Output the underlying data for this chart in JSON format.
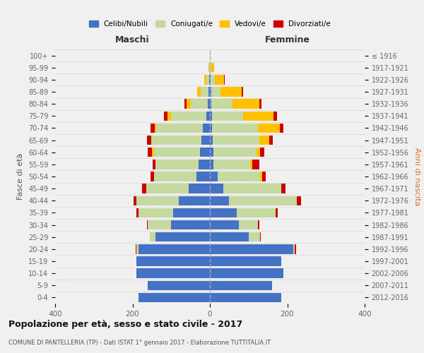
{
  "age_groups": [
    "0-4",
    "5-9",
    "10-14",
    "15-19",
    "20-24",
    "25-29",
    "30-34",
    "35-39",
    "40-44",
    "45-49",
    "50-54",
    "55-59",
    "60-64",
    "65-69",
    "70-74",
    "75-79",
    "80-84",
    "85-89",
    "90-94",
    "95-99",
    "100+"
  ],
  "birth_years": [
    "2012-2016",
    "2007-2011",
    "2002-2006",
    "1997-2001",
    "1992-1996",
    "1987-1991",
    "1982-1986",
    "1977-1981",
    "1972-1976",
    "1967-1971",
    "1962-1966",
    "1957-1961",
    "1952-1956",
    "1947-1951",
    "1942-1946",
    "1937-1941",
    "1932-1936",
    "1927-1931",
    "1922-1926",
    "1917-1921",
    "≤ 1916"
  ],
  "colors": {
    "celibe": "#4472c4",
    "coniugato": "#c5d9a0",
    "vedovo": "#ffc000",
    "divorziato": "#cc0000"
  },
  "maschi": {
    "celibe": [
      185,
      160,
      190,
      190,
      185,
      140,
      100,
      95,
      80,
      55,
      35,
      30,
      25,
      22,
      18,
      10,
      5,
      3,
      2,
      0,
      0
    ],
    "coniugato": [
      0,
      0,
      0,
      0,
      5,
      15,
      60,
      90,
      110,
      110,
      110,
      110,
      120,
      130,
      120,
      90,
      45,
      20,
      8,
      2,
      0
    ],
    "vedovo": [
      0,
      0,
      0,
      0,
      0,
      0,
      0,
      0,
      0,
      0,
      0,
      0,
      5,
      0,
      5,
      10,
      10,
      10,
      5,
      2,
      0
    ],
    "divorziato": [
      0,
      0,
      0,
      0,
      2,
      0,
      2,
      5,
      8,
      10,
      8,
      8,
      10,
      10,
      10,
      8,
      5,
      0,
      0,
      0,
      0
    ]
  },
  "femmine": {
    "celibe": [
      185,
      160,
      190,
      185,
      215,
      100,
      75,
      70,
      50,
      35,
      20,
      10,
      10,
      8,
      5,
      5,
      3,
      3,
      2,
      0,
      0
    ],
    "coniugato": [
      0,
      0,
      0,
      0,
      5,
      30,
      50,
      100,
      175,
      150,
      110,
      95,
      110,
      120,
      120,
      80,
      55,
      25,
      10,
      3,
      0
    ],
    "vedovo": [
      0,
      0,
      0,
      0,
      0,
      0,
      0,
      0,
      0,
      0,
      5,
      5,
      10,
      25,
      55,
      80,
      70,
      55,
      25,
      8,
      2
    ],
    "divorziato": [
      0,
      0,
      0,
      0,
      2,
      2,
      2,
      5,
      10,
      10,
      10,
      18,
      10,
      10,
      10,
      8,
      5,
      2,
      2,
      0,
      0
    ]
  },
  "title": "Popolazione per età, sesso e stato civile - 2017",
  "subtitle": "COMUNE DI PANTELLERIA (TP) - Dati ISTAT 1° gennaio 2017 - Elaborazione TUTTITALIA.IT",
  "xlabel_left": "Maschi",
  "xlabel_right": "Femmine",
  "ylabel_left": "Fasce di età",
  "ylabel_right": "Anni di nascita",
  "xlim": 400,
  "legend_labels": [
    "Celibi/Nubili",
    "Coniugati/e",
    "Vedovi/e",
    "Divorziati/e"
  ],
  "background_color": "#f0f0f0"
}
